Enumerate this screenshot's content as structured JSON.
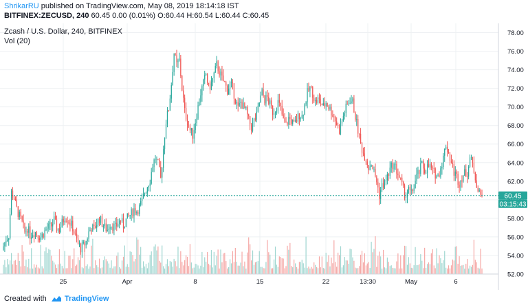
{
  "header": {
    "author": "ShrikarRU",
    "published_text": "published on TradingView.com, May 08, 2019 18:14:18 IST",
    "symbol": "BITFINEX:ZECUSD, 240",
    "quote": "60.45 0.00 (0.01%) O:60.44 H:60.54 L:60.44 C:60.45"
  },
  "footer": {
    "created_with": "Created with",
    "brand": "TradingView"
  },
  "colors": {
    "up": "#26a69a",
    "down": "#ef5350",
    "up_volume": "#9fd6d0",
    "down_volume": "#f5a7a5",
    "last_price_line": "#26a69a",
    "grid": "#eef0f3",
    "text": "#131722",
    "brand": "#2196f3"
  },
  "chart_data": {
    "type": "candlestick",
    "title": "Zcash / U.S. Dollar, 240, BITFINEX",
    "indicator": "Vol (20)",
    "ylim": [
      52,
      79
    ],
    "y_ticks": [
      "78.00",
      "76.00",
      "74.00",
      "72.00",
      "70.00",
      "68.00",
      "66.00",
      "64.00",
      "62.00",
      "60.00",
      "58.00",
      "56.00",
      "54.00",
      "52.00"
    ],
    "x_ticks": [
      "25",
      "Apr",
      "8",
      "15",
      "22",
      "13:30",
      "May",
      "6"
    ],
    "last_price_label": "60.45",
    "countdown_label": "03:15:43",
    "last_price": 60.45,
    "grid": true,
    "closes_per_day": [
      [
        55.0,
        55.8,
        56.2,
        60.8,
        60.2,
        59.0
      ],
      [
        58.2,
        57.5,
        56.5,
        57.0,
        56.2,
        56.5
      ],
      [
        56.5,
        56.2,
        56.0,
        56.4,
        56.8,
        57.0
      ],
      [
        57.2,
        57.8,
        57.0,
        56.8,
        57.5,
        58.2
      ],
      [
        58.0,
        57.5,
        57.0,
        56.0,
        55.2,
        54.8
      ],
      [
        55.0,
        55.5,
        56.5,
        57.0,
        56.8,
        57.5
      ],
      [
        58.0,
        57.5,
        57.0,
        56.8,
        57.5,
        57.2
      ],
      [
        57.0,
        57.5,
        57.8,
        57.2,
        57.8,
        58.2
      ],
      [
        58.5,
        59.0,
        58.8,
        59.2,
        59.8,
        60.8
      ],
      [
        61.5,
        62.2,
        63.8,
        64.5,
        63.8,
        62.2
      ],
      [
        65.5,
        68.5,
        69.8,
        72.5,
        75.8,
        74.5
      ],
      [
        75.0,
        72.0,
        69.5,
        68.5,
        67.5,
        67.0
      ],
      [
        68.5,
        70.0,
        71.5,
        72.5,
        73.5,
        72.0
      ],
      [
        72.5,
        73.5,
        74.5,
        73.8,
        73.0,
        72.5
      ],
      [
        71.8,
        72.5,
        72.0,
        70.8,
        69.8,
        70.5
      ],
      [
        70.0,
        69.5,
        68.5,
        67.8,
        68.5,
        69.0
      ],
      [
        70.5,
        71.5,
        70.8,
        71.0,
        70.2,
        69.5
      ],
      [
        69.8,
        70.5,
        69.8,
        68.5,
        68.0,
        68.8
      ],
      [
        68.5,
        68.0,
        68.6,
        69.2,
        69.0,
        70.2
      ],
      [
        71.5,
        72.0,
        71.5,
        70.5,
        70.8,
        70.5
      ],
      [
        70.0,
        70.5,
        70.0,
        69.5,
        69.0,
        68.2
      ],
      [
        67.5,
        68.5,
        69.5,
        70.2,
        70.8,
        70.5
      ],
      [
        69.0,
        67.5,
        66.0,
        65.0,
        64.5,
        63.5
      ],
      [
        64.0,
        63.0,
        62.0,
        60.5,
        61.5,
        61.8
      ],
      [
        62.5,
        63.2,
        63.8,
        63.5,
        62.8,
        62.0
      ],
      [
        61.0,
        60.5,
        61.0,
        60.6,
        61.5,
        62.5
      ],
      [
        63.0,
        63.8,
        63.2,
        63.5,
        63.6,
        63.0
      ],
      [
        62.8,
        62.5,
        63.5,
        64.5,
        66.0,
        65.0
      ],
      [
        64.0,
        63.0,
        62.5,
        61.8,
        62.5,
        62.8
      ],
      [
        63.0,
        64.5,
        63.8,
        62.5,
        61.0,
        60.45
      ]
    ]
  }
}
